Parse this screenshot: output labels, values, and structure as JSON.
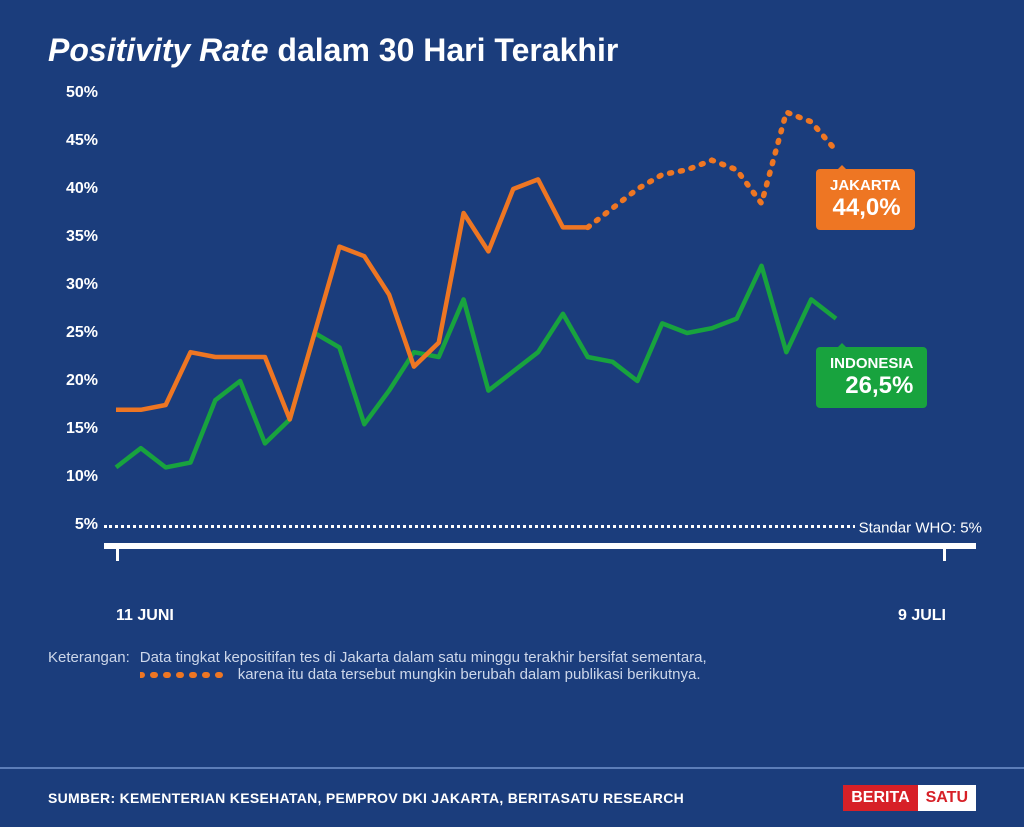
{
  "title_italic": "Positivity Rate",
  "title_rest": " dalam 30 Hari Terakhir",
  "chart": {
    "type": "line",
    "background_color": "#1b3d7c",
    "ylim": [
      0,
      50
    ],
    "ytick_step": 5,
    "ytick_min": 5,
    "ytick_max": 50,
    "ytick_suffix": "%",
    "x_labels": {
      "start": "11 JUNI",
      "end": "9 JULI"
    },
    "who_line_value": 5,
    "who_line_label": "Standar WHO: 5%",
    "series": {
      "jakarta": {
        "name": "JAKARTA",
        "display_value": "44,0%",
        "color": "#ee7623",
        "line_width": 4.5,
        "solid_count": 20,
        "values": [
          17,
          17,
          17.5,
          23,
          22.5,
          22.5,
          22.5,
          16,
          25,
          34,
          33,
          29,
          21.5,
          24,
          37.5,
          33.5,
          40,
          41,
          36,
          36,
          38,
          40,
          41.5,
          42,
          43,
          42,
          38.5,
          48,
          47,
          44
        ],
        "dash_pattern": "2 9"
      },
      "indonesia": {
        "name": "INDONESIA",
        "display_value": "26,5%",
        "color": "#18a33e",
        "line_width": 4.5,
        "values": [
          11,
          13,
          11,
          11.5,
          18,
          20,
          13.5,
          16,
          25,
          23.5,
          15.5,
          19,
          23,
          22.5,
          28.5,
          19,
          21,
          23,
          27,
          22.5,
          22,
          20,
          26,
          25,
          25.5,
          26.5,
          32,
          23,
          28.5,
          26.5
        ]
      }
    }
  },
  "note_label": "Keterangan:",
  "note_line1": "Data tingkat kepositifan tes di Jakarta dalam satu minggu terakhir bersifat sementara,",
  "note_line2": "karena itu data tersebut mungkin berubah dalam publikasi berikutnya.",
  "note_dash_color": "#ee7623",
  "source": "SUMBER: KEMENTERIAN KESEHATAN, PEMPROV DKI JAKARTA, BERITASATU RESEARCH",
  "logo_part1": "BERITA",
  "logo_part2": "SATU"
}
